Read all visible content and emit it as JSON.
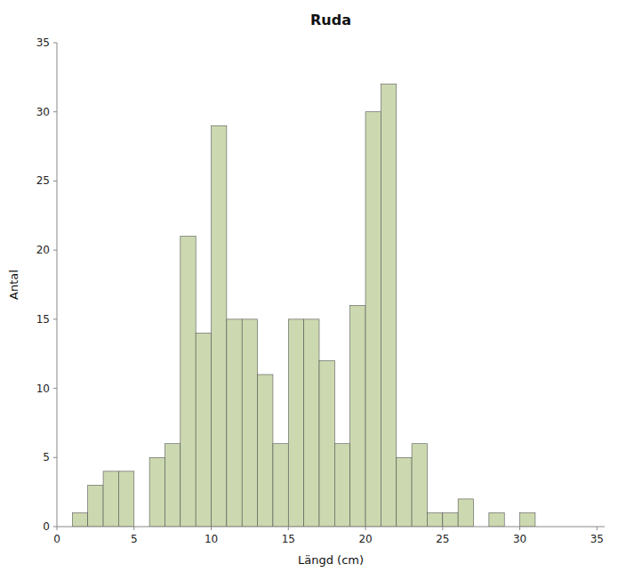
{
  "chart_data": {
    "type": "histogram",
    "title": "Ruda",
    "xlabel": "Längd (cm)",
    "ylabel": "Antal",
    "bins": [
      0,
      1,
      2,
      3,
      4,
      5,
      6,
      7,
      8,
      9,
      10,
      11,
      12,
      13,
      14,
      15,
      16,
      17,
      18,
      19,
      20,
      21,
      22,
      23,
      24,
      25,
      26,
      27,
      28,
      29,
      30,
      31
    ],
    "values": [
      0,
      1,
      3,
      4,
      4,
      0,
      5,
      6,
      21,
      14,
      29,
      15,
      15,
      11,
      6,
      15,
      15,
      12,
      6,
      16,
      30,
      32,
      5,
      6,
      1,
      1,
      2,
      0,
      1,
      0,
      1
    ],
    "color": "#ccd9b0",
    "xlim": [
      0,
      35.5
    ],
    "xticks": [
      0,
      5,
      10,
      15,
      20,
      25,
      30,
      35
    ],
    "ylim": [
      0,
      35
    ],
    "yticks": [
      0,
      5,
      10,
      15,
      20,
      25,
      30,
      35
    ],
    "grid": false
  }
}
